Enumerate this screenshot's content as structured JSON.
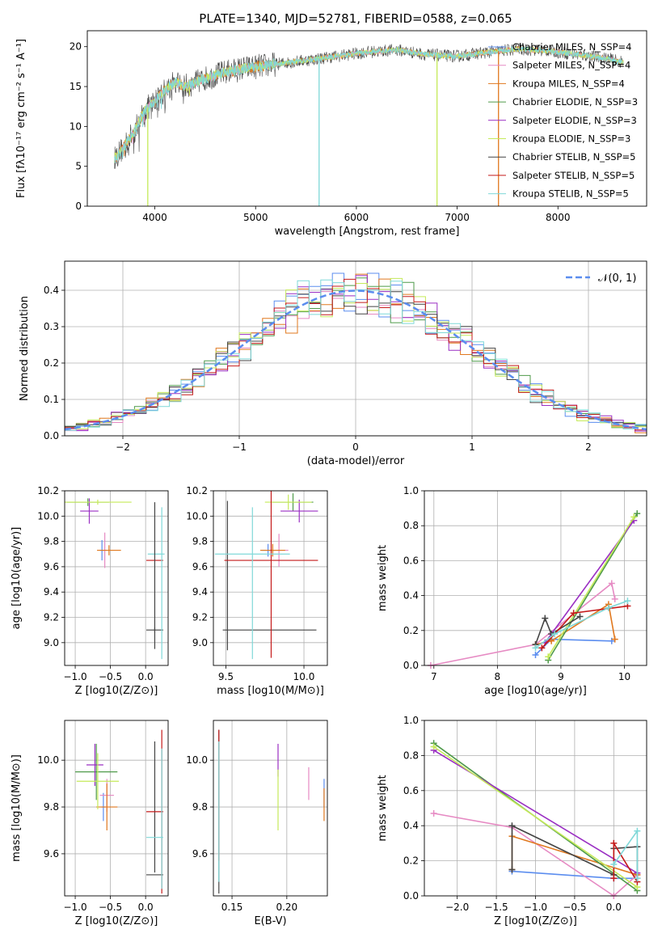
{
  "colors": {
    "Chabrier MILES": "#5b8def",
    "Salpeter MILES": "#e68ac3",
    "Kroupa MILES": "#e0781e",
    "Chabrier ELODIE": "#4f9a4a",
    "Salpeter ELODIE": "#9a2fc3",
    "Kroupa ELODIE": "#c5ea5a",
    "Chabrier STELIB": "#444444",
    "Salpeter STELIB": "#c41a1a",
    "Kroupa STELIB": "#7fd8d8",
    "normal": "#5b8def"
  },
  "chart_data": [
    {
      "type": "line",
      "title": "PLATE=1340, MJD=52781, FIBERID=0588, z=0.065",
      "xlabel": "wavelength [Angstrom, rest frame]",
      "ylabel": "Flux [fλ10⁻¹⁷ erg cm⁻² s⁻¹ A⁻¹]",
      "xlim": [
        3330,
        8880
      ],
      "ylim": [
        0,
        22
      ],
      "xticks": [
        4000,
        5000,
        6000,
        7000,
        8000
      ],
      "yticks": [
        0,
        5,
        10,
        15,
        20
      ],
      "legend_position": "right",
      "legend": [
        "Chabrier MILES, N_SSP=4",
        "Salpeter MILES, N_SSP=4",
        "Kroupa MILES, N_SSP=4",
        "Chabrier ELODIE, N_SSP=3",
        "Salpeter ELODIE, N_SSP=3",
        "Kroupa ELODIE, N_SSP=3",
        "Chabrier STELIB, N_SSP=5",
        "Salpeter STELIB, N_SSP=5",
        "Kroupa STELIB, N_SSP=5"
      ],
      "continuum": {
        "wavelength": [
          3600,
          3700,
          3800,
          3900,
          4000,
          4100,
          4200,
          4300,
          4500,
          4700,
          4900,
          5200,
          5500,
          5800,
          6100,
          6400,
          6700,
          7000,
          7300,
          7600,
          7900,
          8200,
          8500,
          8650
        ],
        "flux": [
          6.0,
          7.5,
          9.5,
          12.0,
          13.2,
          14.5,
          15.5,
          15.0,
          16.0,
          16.8,
          17.3,
          17.8,
          18.3,
          18.8,
          19.3,
          19.6,
          19.0,
          18.8,
          19.3,
          19.7,
          19.5,
          19.0,
          18.5,
          18.0
        ]
      },
      "dips": [
        {
          "wavelength": 3930,
          "model": "Kroupa ELODIE"
        },
        {
          "wavelength": 5630,
          "model": "Kroupa STELIB"
        },
        {
          "wavelength": 6800,
          "model": "Kroupa ELODIE"
        },
        {
          "wavelength": 7410,
          "model": "Kroupa MILES"
        }
      ]
    },
    {
      "type": "line",
      "xlabel": "(data-model)/error",
      "ylabel": "Normed distribution",
      "xlim": [
        -2.5,
        2.5
      ],
      "ylim": [
        0,
        0.48
      ],
      "xticks": [
        -2,
        -1,
        0,
        1,
        2
      ],
      "yticks": [
        0.0,
        0.1,
        0.2,
        0.3,
        0.4
      ],
      "grid": true,
      "legend": [
        "𝒩(0, 1)"
      ],
      "legend_position": "top-right",
      "histogram_series": [
        "Chabrier MILES",
        "Salpeter MILES",
        "Kroupa MILES",
        "Chabrier ELODIE",
        "Salpeter ELODIE",
        "Kroupa ELODIE",
        "Chabrier STELIB",
        "Salpeter STELIB",
        "Kroupa STELIB"
      ],
      "histogram_bin_width": 0.1,
      "normal_curve": {
        "mean": 0,
        "sigma": 1
      }
    },
    {
      "type": "scatter",
      "xlabel": "Z [log10(Z/Z⊙)]",
      "ylabel": "age  [log10(age/yr)]",
      "xlim": [
        -1.15,
        0.32
      ],
      "ylim": [
        8.82,
        10.2
      ],
      "xticks": [
        -1.0,
        -0.5,
        0.0
      ],
      "yticks": [
        9.0,
        9.2,
        9.4,
        9.6,
        9.8,
        10.0,
        10.2
      ],
      "grid": true,
      "points": [
        {
          "series": "Chabrier MILES",
          "x": -0.62,
          "xerr": 0.03,
          "y": 9.73,
          "yerr": 0.08
        },
        {
          "series": "Salpeter MILES",
          "x": -0.58,
          "xerr": 0.03,
          "y": 9.73,
          "yerr": 0.14
        },
        {
          "series": "Kroupa MILES",
          "x": -0.52,
          "xerr": 0.17,
          "y": 9.73,
          "yerr": 0.04
        },
        {
          "series": "Chabrier ELODIE",
          "x": -0.82,
          "xerr": 0.3,
          "y": 10.11,
          "yerr": 0.03
        },
        {
          "series": "Salpeter ELODIE",
          "x": -0.8,
          "xerr": 0.13,
          "y": 10.04,
          "yerr": 0.1
        },
        {
          "series": "Kroupa ELODIE",
          "x": -0.68,
          "xerr": 0.48,
          "y": 10.11,
          "yerr": 0.02
        },
        {
          "series": "Chabrier STELIB",
          "x": 0.13,
          "xerr": 0.12,
          "y": 9.1,
          "yerr": 0.02
        },
        {
          "series": "Salpeter STELIB",
          "x": 0.13,
          "xerr": 0.12,
          "y": 9.65,
          "yerr": 0.0
        },
        {
          "series": "Kroupa STELIB",
          "x": 0.15,
          "xerr": 0.12,
          "y": 9.7,
          "yerr": 0.0
        },
        {
          "series": "Chabrier STELIB",
          "x": 0.13,
          "xerr": 0.0,
          "y": 9.53,
          "yerr": 0.58
        },
        {
          "series": "Kroupa STELIB",
          "x": 0.23,
          "xerr": 0.0,
          "y": 9.47,
          "yerr": 0.6
        }
      ]
    },
    {
      "type": "scatter",
      "xlabel": "mass [log10(M/M⊙)]",
      "xlim": [
        9.42,
        10.15
      ],
      "ylim": [
        8.82,
        10.2
      ],
      "xticks": [
        9.5,
        10.0
      ],
      "yticks": [
        9.0,
        9.2,
        9.4,
        9.6,
        9.8,
        10.0,
        10.2
      ],
      "grid": true,
      "points": [
        {
          "series": "Chabrier MILES",
          "x": 9.77,
          "xerr": 0.04,
          "y": 9.73,
          "yerr": 0.05
        },
        {
          "series": "Salpeter MILES",
          "x": 9.84,
          "xerr": 0.06,
          "y": 9.73,
          "yerr": 0.13
        },
        {
          "series": "Kroupa MILES",
          "x": 9.8,
          "xerr": 0.08,
          "y": 9.73,
          "yerr": 0.05
        },
        {
          "series": "Chabrier ELODIE",
          "x": 9.93,
          "xerr": 0.13,
          "y": 10.11,
          "yerr": 0.07
        },
        {
          "series": "Salpeter ELODIE",
          "x": 9.97,
          "xerr": 0.12,
          "y": 10.04,
          "yerr": 0.09
        },
        {
          "series": "Kroupa ELODIE",
          "x": 9.9,
          "xerr": 0.15,
          "y": 10.11,
          "yerr": 0.06
        },
        {
          "series": "Chabrier STELIB",
          "x": 9.51,
          "xerr": 0.0,
          "y": 9.53,
          "yerr": 0.59
        },
        {
          "series": "Chabrier STELIB",
          "x": 9.78,
          "xerr": 0.3,
          "y": 9.1,
          "yerr": 0.0
        },
        {
          "series": "Salpeter STELIB",
          "x": 9.79,
          "xerr": 0.3,
          "y": 9.65,
          "yerr": 0.77
        },
        {
          "series": "Kroupa STELIB",
          "x": 9.67,
          "xerr": 0.24,
          "y": 9.7,
          "yerr": 0.0
        },
        {
          "series": "Kroupa STELIB",
          "x": 9.67,
          "xerr": 0.0,
          "y": 9.47,
          "yerr": 0.6
        }
      ]
    },
    {
      "type": "line",
      "xlabel": "age  [log10(age/yr)]",
      "ylabel": "mass weight",
      "xlim": [
        6.85,
        10.35
      ],
      "ylim": [
        0,
        1.0
      ],
      "xticks": [
        7,
        8,
        9,
        10
      ],
      "yticks": [
        0.0,
        0.2,
        0.4,
        0.6,
        0.8,
        1.0
      ],
      "grid": true,
      "series": [
        {
          "name": "Chabrier MILES",
          "x": [
            8.6,
            8.85,
            9.8
          ],
          "y": [
            0.06,
            0.15,
            0.14
          ]
        },
        {
          "name": "Salpeter MILES",
          "x": [
            6.95,
            8.6,
            9.8,
            9.85
          ],
          "y": [
            0.0,
            0.12,
            0.47,
            0.38
          ]
        },
        {
          "name": "Kroupa MILES",
          "x": [
            8.6,
            8.85,
            9.75,
            9.85
          ],
          "y": [
            0.12,
            0.14,
            0.35,
            0.15
          ]
        },
        {
          "name": "Chabrier ELODIE",
          "x": [
            8.8,
            10.2
          ],
          "y": [
            0.03,
            0.87
          ]
        },
        {
          "name": "Salpeter ELODIE",
          "x": [
            8.75,
            10.15
          ],
          "y": [
            0.13,
            0.83
          ]
        },
        {
          "name": "Kroupa ELODIE",
          "x": [
            8.8,
            10.15
          ],
          "y": [
            0.05,
            0.85
          ]
        },
        {
          "name": "Chabrier STELIB",
          "x": [
            8.6,
            8.75,
            8.85,
            9.3
          ],
          "y": [
            0.12,
            0.27,
            0.18,
            0.28
          ]
        },
        {
          "name": "Salpeter STELIB",
          "x": [
            8.7,
            9.2,
            10.05
          ],
          "y": [
            0.1,
            0.3,
            0.34
          ]
        },
        {
          "name": "Kroupa STELIB",
          "x": [
            8.6,
            8.9,
            9.75,
            10.05
          ],
          "y": [
            0.1,
            0.18,
            0.33,
            0.37
          ]
        }
      ]
    },
    {
      "type": "scatter",
      "xlabel": "Z [log10(Z/Z⊙)]",
      "ylabel": "mass [log10(M/M⊙)]",
      "xlim": [
        -1.15,
        0.32
      ],
      "ylim": [
        9.42,
        10.17
      ],
      "xticks": [
        -1.0,
        -0.5,
        0.0
      ],
      "yticks": [
        9.6,
        9.8,
        10.0
      ],
      "grid": true,
      "points": [
        {
          "series": "Chabrier MILES",
          "x": -0.6,
          "xerr": 0.03,
          "y": 9.8,
          "yerr": 0.06
        },
        {
          "series": "Salpeter MILES",
          "x": -0.55,
          "xerr": 0.1,
          "y": 9.85,
          "yerr": 0.07
        },
        {
          "series": "Kroupa MILES",
          "x": -0.55,
          "xerr": 0.15,
          "y": 9.8,
          "yerr": 0.1
        },
        {
          "series": "Chabrier ELODIE",
          "x": -0.7,
          "xerr": 0.3,
          "y": 9.95,
          "yerr": 0.12
        },
        {
          "series": "Salpeter ELODIE",
          "x": -0.72,
          "xerr": 0.12,
          "y": 9.98,
          "yerr": 0.09
        },
        {
          "series": "Kroupa ELODIE",
          "x": -0.68,
          "xerr": 0.3,
          "y": 9.91,
          "yerr": 0.12
        },
        {
          "series": "Chabrier STELIB",
          "x": 0.13,
          "xerr": 0.12,
          "y": 9.51,
          "yerr": 0.0
        },
        {
          "series": "Chabrier STELIB",
          "x": 0.13,
          "xerr": 0.0,
          "y": 9.8,
          "yerr": 0.28
        },
        {
          "series": "Salpeter STELIB",
          "x": 0.13,
          "xerr": 0.12,
          "y": 9.78,
          "yerr": 0.0
        },
        {
          "series": "Salpeter STELIB",
          "x": 0.23,
          "xerr": 0.0,
          "y": 9.78,
          "yerr": 0.35
        },
        {
          "series": "Kroupa STELIB",
          "x": 0.13,
          "xerr": 0.12,
          "y": 9.67,
          "yerr": 0.0
        },
        {
          "series": "Kroupa STELIB",
          "x": 0.23,
          "xerr": 0.0,
          "y": 9.75,
          "yerr": 0.3
        }
      ]
    },
    {
      "type": "scatter",
      "xlabel": "E(B-V)",
      "xlim": [
        0.133,
        0.237
      ],
      "ylim": [
        9.42,
        10.17
      ],
      "xticks": [
        0.15,
        0.2
      ],
      "yticks": [
        9.6,
        9.8,
        10.0
      ],
      "grid": true,
      "points": [
        {
          "series": "Chabrier STELIB",
          "x": 0.138,
          "y": 9.78,
          "yerr": 0.35
        },
        {
          "series": "Salpeter STELIB",
          "x": 0.138,
          "y": 9.85,
          "yerr": 0.28
        },
        {
          "series": "Kroupa STELIB",
          "x": 0.138,
          "y": 9.78,
          "yerr": 0.3
        },
        {
          "series": "Salpeter ELODIE",
          "x": 0.192,
          "y": 10.0,
          "yerr": 0.07
        },
        {
          "series": "Kroupa ELODIE",
          "x": 0.192,
          "y": 9.83,
          "yerr": 0.13
        },
        {
          "series": "Salpeter MILES",
          "x": 0.22,
          "y": 9.9,
          "yerr": 0.07
        },
        {
          "series": "Chabrier MILES",
          "x": 0.234,
          "y": 9.86,
          "yerr": 0.06
        },
        {
          "series": "Kroupa MILES",
          "x": 0.234,
          "y": 9.81,
          "yerr": 0.07
        }
      ]
    },
    {
      "type": "line",
      "xlabel": "Z [log10(Z/Z⊙)]",
      "ylabel": "mass weight",
      "xlim": [
        -2.42,
        0.42
      ],
      "ylim": [
        0,
        1.0
      ],
      "xticks": [
        -2.0,
        -1.5,
        -1.0,
        -0.5,
        0.0
      ],
      "yticks": [
        0.0,
        0.2,
        0.4,
        0.6,
        0.8,
        1.0
      ],
      "grid": true,
      "series": [
        {
          "name": "Chabrier MILES",
          "x": [
            -1.3,
            0.0,
            0.3
          ],
          "y": [
            0.14,
            0.1,
            0.1
          ]
        },
        {
          "name": "Salpeter MILES",
          "x": [
            -2.3,
            -1.3,
            0.0,
            0.3
          ],
          "y": [
            0.47,
            0.39,
            0.0,
            0.12
          ]
        },
        {
          "name": "Kroupa MILES",
          "x": [
            -1.3,
            -1.3,
            0.3
          ],
          "y": [
            0.15,
            0.34,
            0.12
          ]
        },
        {
          "name": "Chabrier ELODIE",
          "x": [
            -2.3,
            0.3
          ],
          "y": [
            0.87,
            0.03
          ]
        },
        {
          "name": "Salpeter ELODIE",
          "x": [
            -2.3,
            0.3
          ],
          "y": [
            0.83,
            0.13
          ]
        },
        {
          "name": "Kroupa ELODIE",
          "x": [
            -2.3,
            0.3
          ],
          "y": [
            0.85,
            0.05
          ]
        },
        {
          "name": "Chabrier STELIB",
          "x": [
            -1.3,
            -1.3,
            0.0,
            0.0,
            0.3,
            0.3
          ],
          "y": [
            0.15,
            0.4,
            0.12,
            0.27,
            0.28,
            0.1
          ]
        },
        {
          "name": "Salpeter STELIB",
          "x": [
            0.0,
            0.0,
            0.3
          ],
          "y": [
            0.1,
            0.3,
            0.08
          ]
        },
        {
          "name": "Kroupa STELIB",
          "x": [
            0.0,
            0.3,
            0.3
          ],
          "y": [
            0.18,
            0.37,
            0.1
          ]
        }
      ]
    }
  ]
}
